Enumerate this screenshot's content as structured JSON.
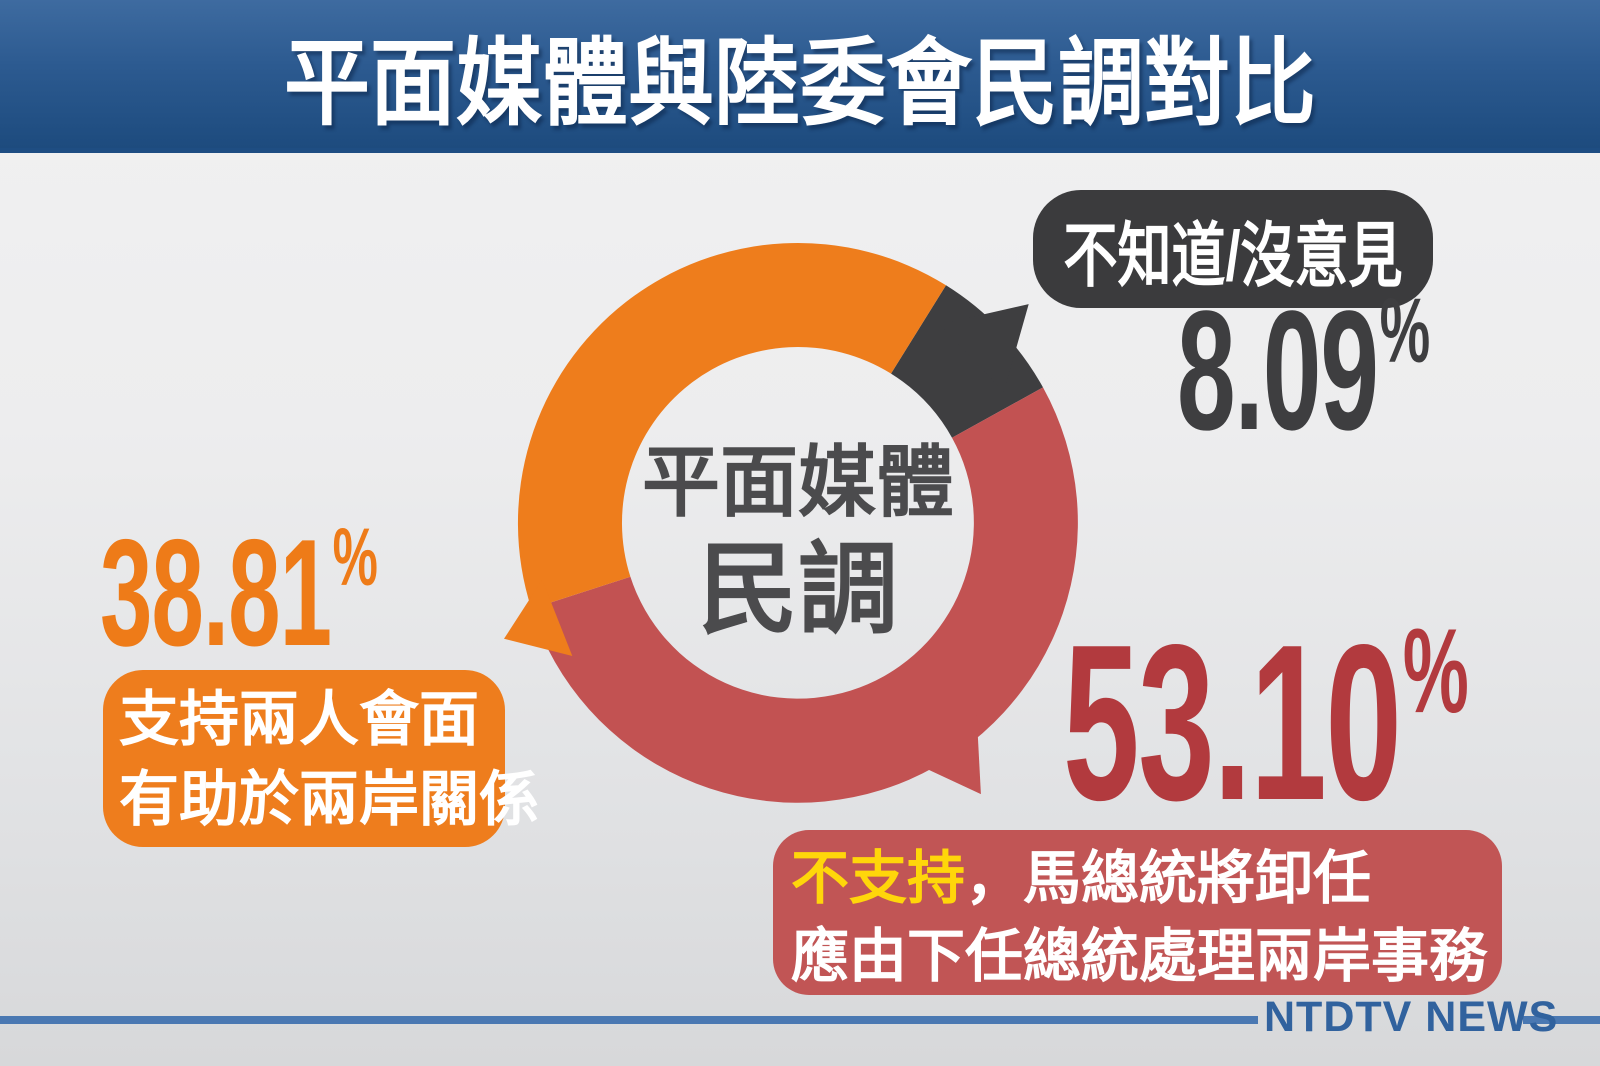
{
  "title": {
    "text": "平面媒體與陸委會民調對比"
  },
  "chart_data": {
    "type": "pie",
    "subtype": "donut",
    "title": "平面媒體民調",
    "center_label": {
      "line1": "平面媒體",
      "line2": "民調"
    },
    "categories": [
      "不知道/沒意見",
      "不支持，馬總統將卸任，應由下任總統處理兩岸事務",
      "支持兩人會面有助於兩岸關係"
    ],
    "values": [
      8.09,
      53.1,
      38.81
    ],
    "unit": "%",
    "legend_position": "callouts",
    "start_angle_deg": 31.9,
    "outer_radius": 280,
    "inner_radius": 176,
    "segments": [
      {
        "name": "dont-know",
        "label": "不知道/沒意見",
        "value": 8.09,
        "color": "#3e3e40",
        "pointer": {
          "angle": 46.5,
          "tip_radius": 318,
          "base_radius": 244,
          "half_width_deg": 11
        }
      },
      {
        "name": "oppose",
        "label": "不支持，馬總統將卸任，應由下任總統處理兩岸事務",
        "value": 53.1,
        "color": "#c25252",
        "pointer": {
          "angle": 146,
          "tip_radius": 327,
          "base_radius": 262,
          "half_width_deg": 9
        }
      },
      {
        "name": "support",
        "label": "支持兩人會面有助於兩岸關係",
        "value": 38.81,
        "color": "#ee7d1c",
        "pointer": {
          "angle": 248.5,
          "tip_radius": 316,
          "base_radius": 262,
          "half_width_deg": 9
        }
      }
    ]
  },
  "callouts": {
    "gray": {
      "badge": "不知道/沒意見",
      "value": "8.09"
    },
    "orange": {
      "value": "38.81",
      "line1": "支持兩人會面",
      "line2": "有助於兩岸關係"
    },
    "red": {
      "value": "53.10",
      "line1_highlight": "不支持",
      "line1_rest": "，馬總統將卸任",
      "line2": "應由下任總統處理兩岸事務"
    }
  },
  "symbols": {
    "percent": "%"
  },
  "footer": {
    "brand": "NTDTV NEWS"
  },
  "colors": {
    "banner_top": "#3e6ba0",
    "banner_bottom": "#1d4b7e",
    "orange": "#ee7d1c",
    "ring_red": "#c25252",
    "red_number": "#b23a3e",
    "red_box": "#c15555",
    "dark_gray": "#3e3e40",
    "highlight_yellow": "#ffd60a",
    "footer_line_blue": "#4a78b2",
    "brand_blue": "#31629e"
  }
}
